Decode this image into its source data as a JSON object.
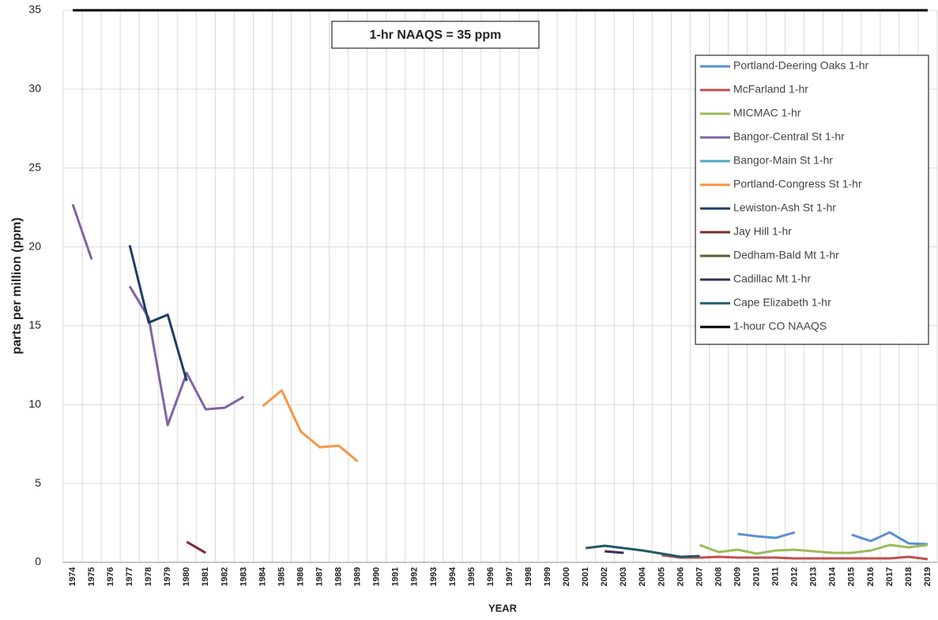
{
  "chart_data": {
    "type": "line",
    "annotation": "1-hr NAAQS = 35 ppm",
    "y_label": "parts per million (ppm)",
    "x_label": "YEAR",
    "categories": [
      "1974",
      "1975",
      "1976",
      "1977",
      "1978",
      "1979",
      "1980",
      "1981",
      "1982",
      "1983",
      "1984",
      "1985",
      "1986",
      "1987",
      "1988",
      "1989",
      "1990",
      "1991",
      "1992",
      "1993",
      "1994",
      "1995",
      "1996",
      "1997",
      "1998",
      "1999",
      "2000",
      "2001",
      "2002",
      "2003",
      "2004",
      "2005",
      "2006",
      "2007",
      "2008",
      "2009",
      "2010",
      "2011",
      "2012",
      "2013",
      "2014",
      "2015",
      "2016",
      "2017",
      "2018",
      "2019"
    ],
    "ylim": [
      0,
      35
    ],
    "yticks": [
      0,
      5,
      10,
      15,
      20,
      25,
      30,
      35
    ],
    "grid": true,
    "legend": "right",
    "series": [
      {
        "name": "Portland-Deering Oaks 1-hr",
        "color": "#5b8fd0",
        "values": [
          null,
          null,
          null,
          null,
          null,
          null,
          null,
          null,
          null,
          null,
          null,
          null,
          null,
          null,
          null,
          null,
          null,
          null,
          null,
          null,
          null,
          null,
          null,
          null,
          null,
          null,
          null,
          null,
          null,
          null,
          null,
          null,
          null,
          null,
          null,
          1.8,
          1.65,
          1.55,
          1.9,
          null,
          null,
          1.75,
          1.35,
          1.9,
          1.2,
          1.15
        ]
      },
      {
        "name": "McFarland 1-hr",
        "color": "#c0504d",
        "values": [
          null,
          null,
          null,
          null,
          null,
          null,
          null,
          null,
          null,
          null,
          null,
          null,
          null,
          null,
          null,
          null,
          null,
          null,
          null,
          null,
          null,
          null,
          null,
          null,
          null,
          null,
          null,
          null,
          null,
          null,
          null,
          0.45,
          0.3,
          0.3,
          0.35,
          0.3,
          0.3,
          0.3,
          0.25,
          0.25,
          0.25,
          0.25,
          0.25,
          0.25,
          0.35,
          0.2
        ]
      },
      {
        "name": "MICMAC 1-hr",
        "color": "#9bbb59",
        "values": [
          null,
          null,
          null,
          null,
          null,
          null,
          null,
          null,
          null,
          null,
          null,
          null,
          null,
          null,
          null,
          null,
          null,
          null,
          null,
          null,
          null,
          null,
          null,
          null,
          null,
          null,
          null,
          null,
          null,
          null,
          null,
          null,
          null,
          1.1,
          0.65,
          0.8,
          0.55,
          0.75,
          0.8,
          0.7,
          0.6,
          0.6,
          0.75,
          1.1,
          0.95,
          1.1
        ]
      },
      {
        "name": "Bangor-Central St 1-hr",
        "color": "#8064a2",
        "values": [
          22.7,
          19.2,
          null,
          17.5,
          15.5,
          8.7,
          12.0,
          9.7,
          9.8,
          10.5,
          null,
          null,
          null,
          null,
          null,
          null,
          null,
          null,
          null,
          null,
          null,
          null,
          null,
          null,
          null,
          null,
          null,
          null,
          null,
          null,
          null,
          null,
          null,
          null,
          null,
          null,
          null,
          null,
          null,
          null,
          null,
          null,
          null,
          null,
          null,
          null
        ]
      },
      {
        "name": "Bangor-Main St 1-hr",
        "color": "#4bacc6",
        "values": [
          null,
          null,
          null,
          null,
          null,
          null,
          null,
          null,
          null,
          null,
          null,
          null,
          null,
          null,
          null,
          null,
          null,
          null,
          null,
          null,
          null,
          null,
          null,
          null,
          null,
          null,
          null,
          null,
          null,
          null,
          null,
          null,
          null,
          null,
          null,
          null,
          null,
          null,
          null,
          null,
          null,
          null,
          null,
          null,
          null,
          null
        ]
      },
      {
        "name": "Portland-Congress St 1-hr",
        "color": "#f79646",
        "values": [
          null,
          null,
          null,
          null,
          null,
          null,
          null,
          null,
          null,
          null,
          9.9,
          10.9,
          8.3,
          7.3,
          7.4,
          6.4,
          null,
          null,
          null,
          null,
          null,
          null,
          null,
          null,
          null,
          null,
          null,
          null,
          null,
          null,
          null,
          null,
          null,
          null,
          null,
          null,
          null,
          null,
          null,
          null,
          null,
          null,
          null,
          null,
          null,
          null
        ]
      },
      {
        "name": "Lewiston-Ash St 1-hr",
        "color": "#1f3d66",
        "values": [
          null,
          null,
          null,
          20.1,
          15.2,
          15.7,
          11.5,
          null,
          null,
          null,
          null,
          null,
          null,
          null,
          null,
          null,
          null,
          null,
          null,
          null,
          null,
          null,
          null,
          null,
          null,
          null,
          null,
          null,
          null,
          null,
          null,
          null,
          null,
          null,
          null,
          null,
          null,
          null,
          null,
          null,
          null,
          null,
          null,
          null,
          null,
          null
        ]
      },
      {
        "name": "Jay Hill 1-hr",
        "color": "#7b2c2c",
        "values": [
          null,
          null,
          null,
          null,
          null,
          null,
          1.3,
          0.6,
          null,
          null,
          null,
          null,
          null,
          null,
          null,
          null,
          null,
          null,
          null,
          null,
          null,
          null,
          null,
          null,
          null,
          null,
          null,
          null,
          null,
          null,
          null,
          null,
          null,
          null,
          null,
          null,
          null,
          null,
          null,
          null,
          null,
          null,
          null,
          null,
          null,
          null
        ]
      },
      {
        "name": "Dedham-Bald Mt 1-hr",
        "color": "#4f6228",
        "values": [
          null,
          null,
          null,
          null,
          null,
          null,
          null,
          null,
          null,
          null,
          null,
          null,
          null,
          null,
          null,
          null,
          null,
          null,
          null,
          null,
          null,
          null,
          null,
          null,
          null,
          null,
          null,
          null,
          null,
          null,
          null,
          null,
          null,
          null,
          null,
          null,
          null,
          null,
          null,
          null,
          null,
          null,
          null,
          null,
          null,
          null
        ]
      },
      {
        "name": "Cadillac Mt 1-hr",
        "color": "#3f2a56",
        "values": [
          null,
          null,
          null,
          null,
          null,
          null,
          null,
          null,
          null,
          null,
          null,
          null,
          null,
          null,
          null,
          null,
          null,
          null,
          null,
          null,
          null,
          null,
          null,
          null,
          null,
          null,
          null,
          null,
          0.7,
          0.6,
          null,
          null,
          null,
          null,
          null,
          null,
          null,
          null,
          null,
          null,
          null,
          null,
          null,
          null,
          null,
          null
        ]
      },
      {
        "name": "Cape Elizabeth 1-hr",
        "color": "#215968",
        "values": [
          null,
          null,
          null,
          null,
          null,
          null,
          null,
          null,
          null,
          null,
          null,
          null,
          null,
          null,
          null,
          null,
          null,
          null,
          null,
          null,
          null,
          null,
          null,
          null,
          null,
          null,
          null,
          0.9,
          1.05,
          0.9,
          0.75,
          0.55,
          0.35,
          0.4,
          null,
          null,
          null,
          null,
          null,
          null,
          null,
          null,
          null,
          null,
          null,
          null
        ]
      },
      {
        "name": "1-hour CO NAAQS",
        "color": "#000000",
        "values": [
          35,
          35,
          35,
          35,
          35,
          35,
          35,
          35,
          35,
          35,
          35,
          35,
          35,
          35,
          35,
          35,
          35,
          35,
          35,
          35,
          35,
          35,
          35,
          35,
          35,
          35,
          35,
          35,
          35,
          35,
          35,
          35,
          35,
          35,
          35,
          35,
          35,
          35,
          35,
          35,
          35,
          35,
          35,
          35,
          35,
          35
        ]
      }
    ]
  }
}
